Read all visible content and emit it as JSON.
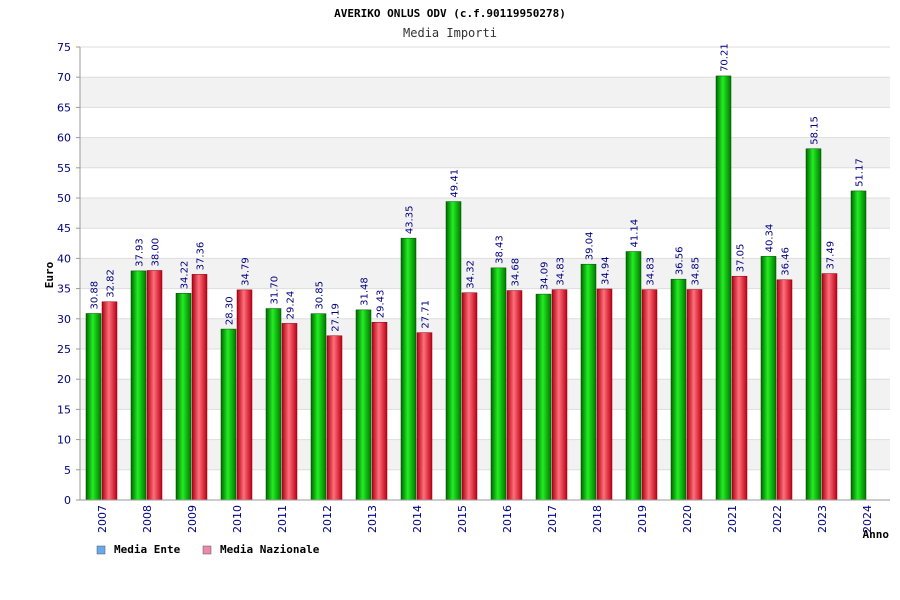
{
  "chart_data": {
    "type": "bar",
    "title": "AVERIKO ONLUS ODV (c.f.90119950278)",
    "subtitle": "Media Importi",
    "xlabel": "Anno",
    "ylabel": "Euro",
    "ylim": [
      0,
      75
    ],
    "yticks": [
      0,
      5,
      10,
      15,
      20,
      25,
      30,
      35,
      40,
      45,
      50,
      55,
      60,
      65,
      70,
      75
    ],
    "grid": true,
    "legend_position": "bottom-left",
    "categories": [
      "2007",
      "2008",
      "2009",
      "2010",
      "2011",
      "2012",
      "2013",
      "2014",
      "2015",
      "2016",
      "2017",
      "2018",
      "2019",
      "2020",
      "2021",
      "2022",
      "2023",
      "2024"
    ],
    "series": [
      {
        "name": "Media Ente",
        "color": "#00cc00",
        "legend_color": "#66aaee",
        "values": [
          30.88,
          37.93,
          34.22,
          28.3,
          31.7,
          30.85,
          31.48,
          43.35,
          49.41,
          38.43,
          34.09,
          39.04,
          41.14,
          36.56,
          70.21,
          40.34,
          58.15,
          51.17
        ],
        "labels": [
          "30.88",
          "37.93",
          "34.22",
          "28.30",
          "31.70",
          "30.85",
          "31.48",
          "43.35",
          "49.41",
          "38.43",
          "34.09",
          "39.04",
          "41.14",
          "36.56",
          "70.21",
          "40.34",
          "58.15",
          "51.17"
        ]
      },
      {
        "name": "Media Nazionale",
        "color": "#ee2233",
        "legend_color": "#ee88aa",
        "values": [
          32.82,
          38.0,
          37.36,
          34.79,
          29.24,
          27.19,
          29.43,
          27.71,
          34.32,
          34.68,
          34.83,
          34.94,
          34.83,
          34.85,
          37.05,
          36.46,
          37.49,
          null
        ],
        "labels": [
          "32.82",
          "38.00",
          "37.36",
          "34.79",
          "29.24",
          "27.19",
          "29.43",
          "27.71",
          "34.32",
          "34.68",
          "34.83",
          "34.94",
          "34.83",
          "34.85",
          "37.05",
          "36.46",
          "37.49",
          null
        ]
      }
    ]
  }
}
